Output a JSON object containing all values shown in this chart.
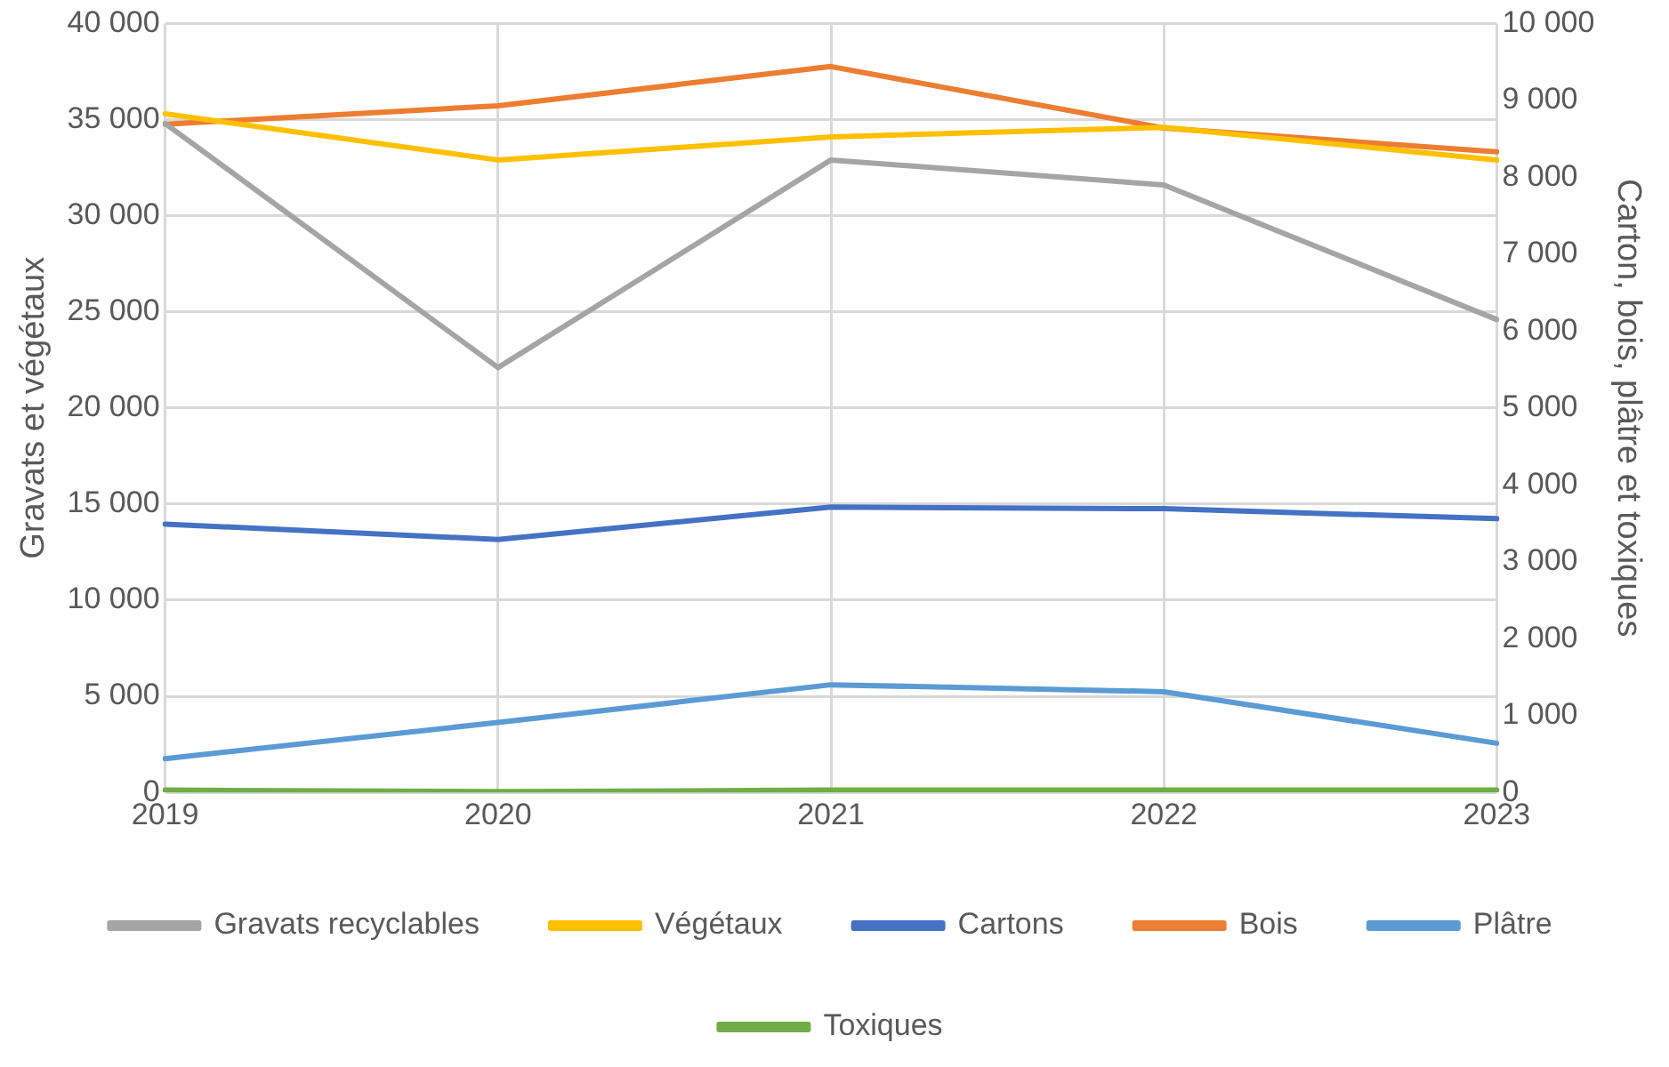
{
  "chart_data": {
    "type": "line",
    "ylabel": "Gravats et végétaux",
    "y2label": "Carton, bois, plâtre et toxiques",
    "categories": [
      "2019",
      "2020",
      "2021",
      "2022",
      "2023"
    ],
    "ylim": [
      0,
      40000
    ],
    "yticks": [
      {
        "value": 0,
        "label": "0"
      },
      {
        "value": 5000,
        "label": "5 000"
      },
      {
        "value": 10000,
        "label": "10 000"
      },
      {
        "value": 15000,
        "label": "15 000"
      },
      {
        "value": 20000,
        "label": "20 000"
      },
      {
        "value": 25000,
        "label": "25 000"
      },
      {
        "value": 30000,
        "label": "30 000"
      },
      {
        "value": 35000,
        "label": "35 000"
      },
      {
        "value": 40000,
        "label": "40 000"
      }
    ],
    "y2lim": [
      0,
      10000
    ],
    "y2ticks": [
      0,
      {
        "value": 1000,
        "label": "1 000"
      },
      {
        "value": 2000,
        "label": "2 000"
      },
      {
        "value": 3000,
        "label": "3 000"
      },
      {
        "value": 4000,
        "label": "4 000"
      },
      {
        "value": 5000,
        "label": "5 000"
      },
      {
        "value": 6000,
        "label": "6 000"
      },
      {
        "value": 7000,
        "label": "7 000"
      },
      {
        "value": 8000,
        "label": "8 000"
      },
      {
        "value": 9000,
        "label": "9 000"
      },
      {
        "value": 10000,
        "label": "10 000"
      }
    ],
    "grid": true,
    "legend": "bottom",
    "marker": "none",
    "line_style": "solid",
    "series": [
      {
        "name": "Gravats recyclables",
        "color": "#a5a5a5",
        "values": [
          34800,
          22100,
          32900,
          31600,
          24600
        ]
      },
      {
        "name": "Végétaux",
        "color": "#ffc000",
        "values": [
          35300,
          32900,
          34100,
          34600,
          32900
        ]
      },
      {
        "name": "Cartons",
        "color": "#4472c4",
        "axis": "y2",
        "values": [
          3490,
          3290,
          3710,
          3690,
          3560
        ]
      },
      {
        "name": "Bois",
        "color": "#ed7d31",
        "axis": "y2",
        "values": [
          8690,
          8930,
          9440,
          8640,
          8330
        ]
      },
      {
        "name": "Plâtre",
        "color": "#5b9bd5",
        "axis": "y2",
        "values": [
          440,
          910,
          1400,
          1310,
          640
        ]
      },
      {
        "name": "Toxiques",
        "color": "#70ad47",
        "axis": "y2",
        "values": [
          30,
          10,
          30,
          30,
          30
        ]
      }
    ]
  }
}
